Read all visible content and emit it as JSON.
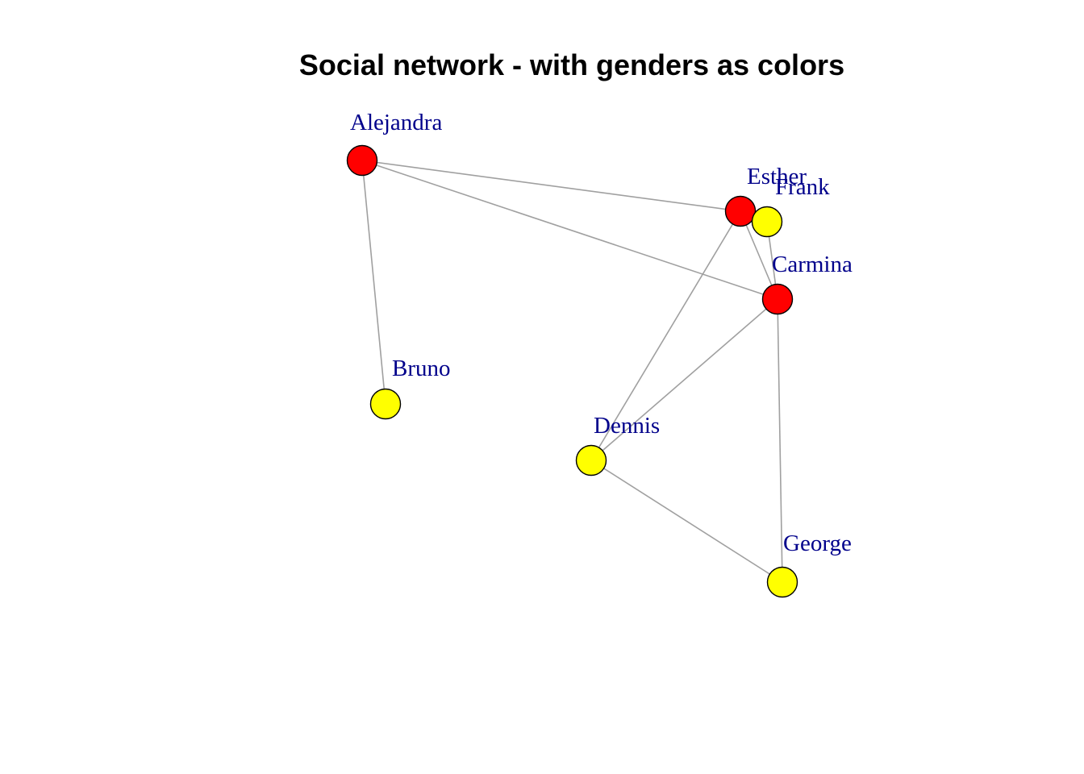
{
  "title": "Social network - with genders as colors",
  "colors": {
    "female": "#ff0000",
    "male": "#ffff00",
    "edge": "#a0a0a0",
    "label": "#00008b",
    "node_border": "#000000"
  },
  "nodes": [
    {
      "id": "alejandra",
      "label": "Alejandra",
      "gender": "female"
    },
    {
      "id": "bruno",
      "label": "Bruno",
      "gender": "male"
    },
    {
      "id": "carmina",
      "label": "Carmina",
      "gender": "female"
    },
    {
      "id": "dennis",
      "label": "Dennis",
      "gender": "male"
    },
    {
      "id": "esther",
      "label": "Esther",
      "gender": "female"
    },
    {
      "id": "frank",
      "label": "Frank",
      "gender": "male"
    },
    {
      "id": "george",
      "label": "George",
      "gender": "male"
    }
  ],
  "edges": [
    {
      "from": "alejandra",
      "to": "bruno"
    },
    {
      "from": "alejandra",
      "to": "esther"
    },
    {
      "from": "alejandra",
      "to": "carmina"
    },
    {
      "from": "esther",
      "to": "carmina"
    },
    {
      "from": "esther",
      "to": "dennis"
    },
    {
      "from": "frank",
      "to": "carmina"
    },
    {
      "from": "carmina",
      "to": "dennis"
    },
    {
      "from": "carmina",
      "to": "george"
    },
    {
      "from": "dennis",
      "to": "george"
    }
  ]
}
